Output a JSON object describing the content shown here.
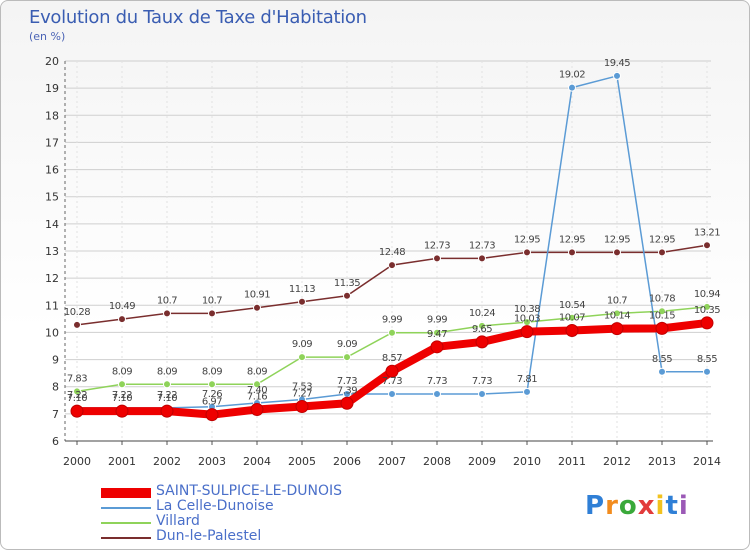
{
  "header": {
    "title": "Evolution du Taux de Taxe d'Habitation",
    "subtitle": "(en %)"
  },
  "logo": {
    "text": "Proxiti",
    "colors": [
      "#2f7fd6",
      "#f28c1e",
      "#3aa93a",
      "#e23b3b",
      "#f2c21e",
      "#2f7fd6",
      "#9b59b6"
    ]
  },
  "chart_data": {
    "type": "line",
    "title": "Evolution du Taux de Taxe d'Habitation",
    "ylabel": "(en %)",
    "xlabel": "",
    "x": [
      "2000",
      "2001",
      "2002",
      "2003",
      "2004",
      "2005",
      "2006",
      "2007",
      "2008",
      "2009",
      "2010",
      "2011",
      "2012",
      "2013",
      "2014"
    ],
    "ylim": [
      6,
      20
    ],
    "yticks": [
      6,
      7,
      8,
      9,
      10,
      11,
      12,
      13,
      14,
      15,
      16,
      17,
      18,
      19,
      20
    ],
    "grid": true,
    "legend_position": "bottom-left",
    "series": [
      {
        "name": "SAINT-SULPICE-LE-DUNOIS",
        "color": "#ee0000",
        "emphasis": true,
        "values": [
          7.1,
          7.1,
          7.1,
          6.97,
          7.16,
          7.27,
          7.39,
          8.57,
          9.47,
          9.65,
          10.03,
          10.07,
          10.14,
          10.15,
          10.35
        ],
        "labels": [
          "7.10",
          "7.10",
          "7.10",
          "6.97",
          "7.16",
          "7.27",
          "7.39",
          "8.57",
          "9.47",
          "9.65",
          "10.03",
          "10.07",
          "10.14",
          "10.15",
          "10.35"
        ]
      },
      {
        "name": "La Celle-Dunoise",
        "color": "#5b9bd5",
        "values": [
          7.22,
          7.22,
          7.22,
          7.26,
          7.4,
          7.53,
          7.73,
          7.73,
          7.73,
          7.73,
          7.81,
          19.02,
          19.45,
          8.55,
          8.55
        ],
        "labels": [
          "7.22",
          "7.22",
          "7.22",
          "7.26",
          "7.40",
          "7.53",
          "7.73",
          "7.73",
          "7.73",
          "7.73",
          "7.81",
          "19.02",
          "19.45",
          "8.55",
          "8.55"
        ]
      },
      {
        "name": "Villard",
        "color": "#8fd35a",
        "values": [
          7.83,
          8.09,
          8.09,
          8.09,
          8.09,
          9.09,
          9.09,
          9.99,
          9.99,
          10.24,
          10.38,
          10.54,
          10.7,
          10.78,
          10.94
        ],
        "labels": [
          "7.83",
          "8.09",
          "8.09",
          "8.09",
          "8.09",
          "9.09",
          "9.09",
          "9.99",
          "9.99",
          "10.24",
          "10.38",
          "10.54",
          "10.7",
          "10.78",
          "10.94"
        ]
      },
      {
        "name": "Dun-le-Palestel",
        "color": "#7a2e2e",
        "values": [
          10.28,
          10.49,
          10.7,
          10.7,
          10.91,
          11.13,
          11.35,
          12.48,
          12.73,
          12.73,
          12.95,
          12.95,
          12.95,
          12.95,
          13.21
        ],
        "labels": [
          "10.28",
          "10.49",
          "10.7",
          "10.7",
          "10.91",
          "11.13",
          "11.35",
          "12.48",
          "12.73",
          "12.73",
          "12.95",
          "12.95",
          "12.95",
          "12.95",
          "13.21"
        ]
      }
    ]
  }
}
